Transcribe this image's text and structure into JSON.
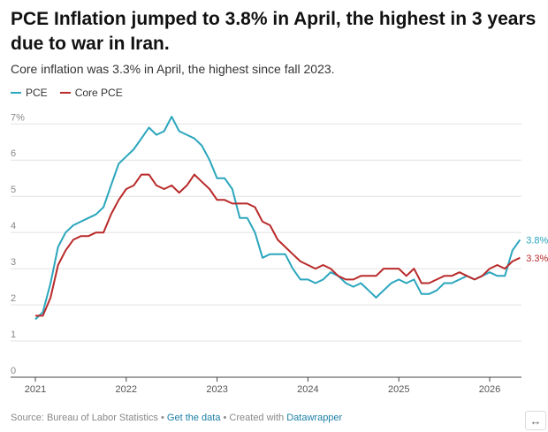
{
  "header": {
    "title": "PCE Inflation jumped to 3.8% in April, the highest in 3 years due to war in Iran.",
    "subtitle": "Core inflation was 3.3% in April, the highest since fall 2023."
  },
  "legend": [
    {
      "label": "PCE",
      "color": "#2aa6bd"
    },
    {
      "label": "Core PCE",
      "color": "#b92a2a"
    }
  ],
  "chart_data": {
    "type": "line",
    "title": "PCE Inflation jumped to 3.8% in April, the highest in 3 years due to war in Iran.",
    "subtitle": "Core inflation was 3.3% in April, the highest since fall 2023.",
    "xlabel": "",
    "ylabel": "",
    "x_ticks": [
      "2021",
      "2022",
      "2023",
      "2024",
      "2025",
      "2026"
    ],
    "y_ticks": [
      "0",
      "1",
      "2",
      "3",
      "4",
      "5",
      "6",
      "7%"
    ],
    "xlim": [
      2021.0,
      2026.35
    ],
    "ylim": [
      0,
      7.3
    ],
    "grid": "horizontal",
    "legend_position": "top-left",
    "series": [
      {
        "name": "PCE",
        "color": "#2aa6bd",
        "end_label": "3.8%",
        "points": [
          [
            2021.0,
            1.6
          ],
          [
            2021.083,
            1.8
          ],
          [
            2021.167,
            2.6
          ],
          [
            2021.25,
            3.6
          ],
          [
            2021.333,
            4.0
          ],
          [
            2021.417,
            4.2
          ],
          [
            2021.5,
            4.3
          ],
          [
            2021.583,
            4.4
          ],
          [
            2021.667,
            4.5
          ],
          [
            2021.75,
            4.7
          ],
          [
            2021.833,
            5.3
          ],
          [
            2021.917,
            5.9
          ],
          [
            2022.0,
            6.1
          ],
          [
            2022.083,
            6.3
          ],
          [
            2022.167,
            6.6
          ],
          [
            2022.25,
            6.9
          ],
          [
            2022.333,
            6.7
          ],
          [
            2022.417,
            6.8
          ],
          [
            2022.5,
            7.2
          ],
          [
            2022.583,
            6.8
          ],
          [
            2022.667,
            6.7
          ],
          [
            2022.75,
            6.6
          ],
          [
            2022.833,
            6.4
          ],
          [
            2022.917,
            6.0
          ],
          [
            2023.0,
            5.5
          ],
          [
            2023.083,
            5.5
          ],
          [
            2023.167,
            5.2
          ],
          [
            2023.25,
            4.4
          ],
          [
            2023.333,
            4.4
          ],
          [
            2023.417,
            4.0
          ],
          [
            2023.5,
            3.3
          ],
          [
            2023.583,
            3.4
          ],
          [
            2023.667,
            3.4
          ],
          [
            2023.75,
            3.4
          ],
          [
            2023.833,
            3.0
          ],
          [
            2023.917,
            2.7
          ],
          [
            2024.0,
            2.7
          ],
          [
            2024.083,
            2.6
          ],
          [
            2024.167,
            2.7
          ],
          [
            2024.25,
            2.9
          ],
          [
            2024.333,
            2.8
          ],
          [
            2024.417,
            2.6
          ],
          [
            2024.5,
            2.5
          ],
          [
            2024.583,
            2.6
          ],
          [
            2024.667,
            2.4
          ],
          [
            2024.75,
            2.2
          ],
          [
            2024.833,
            2.4
          ],
          [
            2024.917,
            2.6
          ],
          [
            2025.0,
            2.7
          ],
          [
            2025.083,
            2.6
          ],
          [
            2025.167,
            2.7
          ],
          [
            2025.25,
            2.3
          ],
          [
            2025.333,
            2.3
          ],
          [
            2025.417,
            2.4
          ],
          [
            2025.5,
            2.6
          ],
          [
            2025.583,
            2.6
          ],
          [
            2025.667,
            2.7
          ],
          [
            2025.75,
            2.8
          ],
          [
            2025.833,
            2.7
          ],
          [
            2025.917,
            2.8
          ],
          [
            2026.0,
            2.9
          ],
          [
            2026.083,
            2.8
          ],
          [
            2026.167,
            2.8
          ],
          [
            2026.25,
            3.5
          ],
          [
            2026.333,
            3.8
          ]
        ]
      },
      {
        "name": "Core PCE",
        "color": "#b92a2a",
        "end_label": "3.3%",
        "points": [
          [
            2021.0,
            1.7
          ],
          [
            2021.083,
            1.7
          ],
          [
            2021.167,
            2.2
          ],
          [
            2021.25,
            3.1
          ],
          [
            2021.333,
            3.5
          ],
          [
            2021.417,
            3.8
          ],
          [
            2021.5,
            3.9
          ],
          [
            2021.583,
            3.9
          ],
          [
            2021.667,
            4.0
          ],
          [
            2021.75,
            4.0
          ],
          [
            2021.833,
            4.5
          ],
          [
            2021.917,
            4.9
          ],
          [
            2022.0,
            5.2
          ],
          [
            2022.083,
            5.3
          ],
          [
            2022.167,
            5.6
          ],
          [
            2022.25,
            5.6
          ],
          [
            2022.333,
            5.3
          ],
          [
            2022.417,
            5.2
          ],
          [
            2022.5,
            5.3
          ],
          [
            2022.583,
            5.1
          ],
          [
            2022.667,
            5.3
          ],
          [
            2022.75,
            5.6
          ],
          [
            2022.833,
            5.4
          ],
          [
            2022.917,
            5.2
          ],
          [
            2023.0,
            4.9
          ],
          [
            2023.083,
            4.9
          ],
          [
            2023.167,
            4.8
          ],
          [
            2023.25,
            4.8
          ],
          [
            2023.333,
            4.8
          ],
          [
            2023.417,
            4.7
          ],
          [
            2023.5,
            4.3
          ],
          [
            2023.583,
            4.2
          ],
          [
            2023.667,
            3.8
          ],
          [
            2023.75,
            3.6
          ],
          [
            2023.833,
            3.4
          ],
          [
            2023.917,
            3.2
          ],
          [
            2024.0,
            3.1
          ],
          [
            2024.083,
            3.0
          ],
          [
            2024.167,
            3.1
          ],
          [
            2024.25,
            3.0
          ],
          [
            2024.333,
            2.8
          ],
          [
            2024.417,
            2.7
          ],
          [
            2024.5,
            2.7
          ],
          [
            2024.583,
            2.8
          ],
          [
            2024.667,
            2.8
          ],
          [
            2024.75,
            2.8
          ],
          [
            2024.833,
            3.0
          ],
          [
            2024.917,
            3.0
          ],
          [
            2025.0,
            3.0
          ],
          [
            2025.083,
            2.8
          ],
          [
            2025.167,
            3.0
          ],
          [
            2025.25,
            2.6
          ],
          [
            2025.333,
            2.6
          ],
          [
            2025.417,
            2.7
          ],
          [
            2025.5,
            2.8
          ],
          [
            2025.583,
            2.8
          ],
          [
            2025.667,
            2.9
          ],
          [
            2025.75,
            2.8
          ],
          [
            2025.833,
            2.7
          ],
          [
            2025.917,
            2.8
          ],
          [
            2026.0,
            3.0
          ],
          [
            2026.083,
            3.1
          ],
          [
            2026.167,
            3.0
          ],
          [
            2026.25,
            3.2
          ],
          [
            2026.333,
            3.3
          ]
        ]
      }
    ]
  },
  "footer": {
    "source": "Source: Bureau of Labor Statistics",
    "sep1": " • ",
    "get_data": "Get the data",
    "sep2": " • Created with ",
    "created_with": "Datawrapper",
    "expand_icon": "↔"
  }
}
